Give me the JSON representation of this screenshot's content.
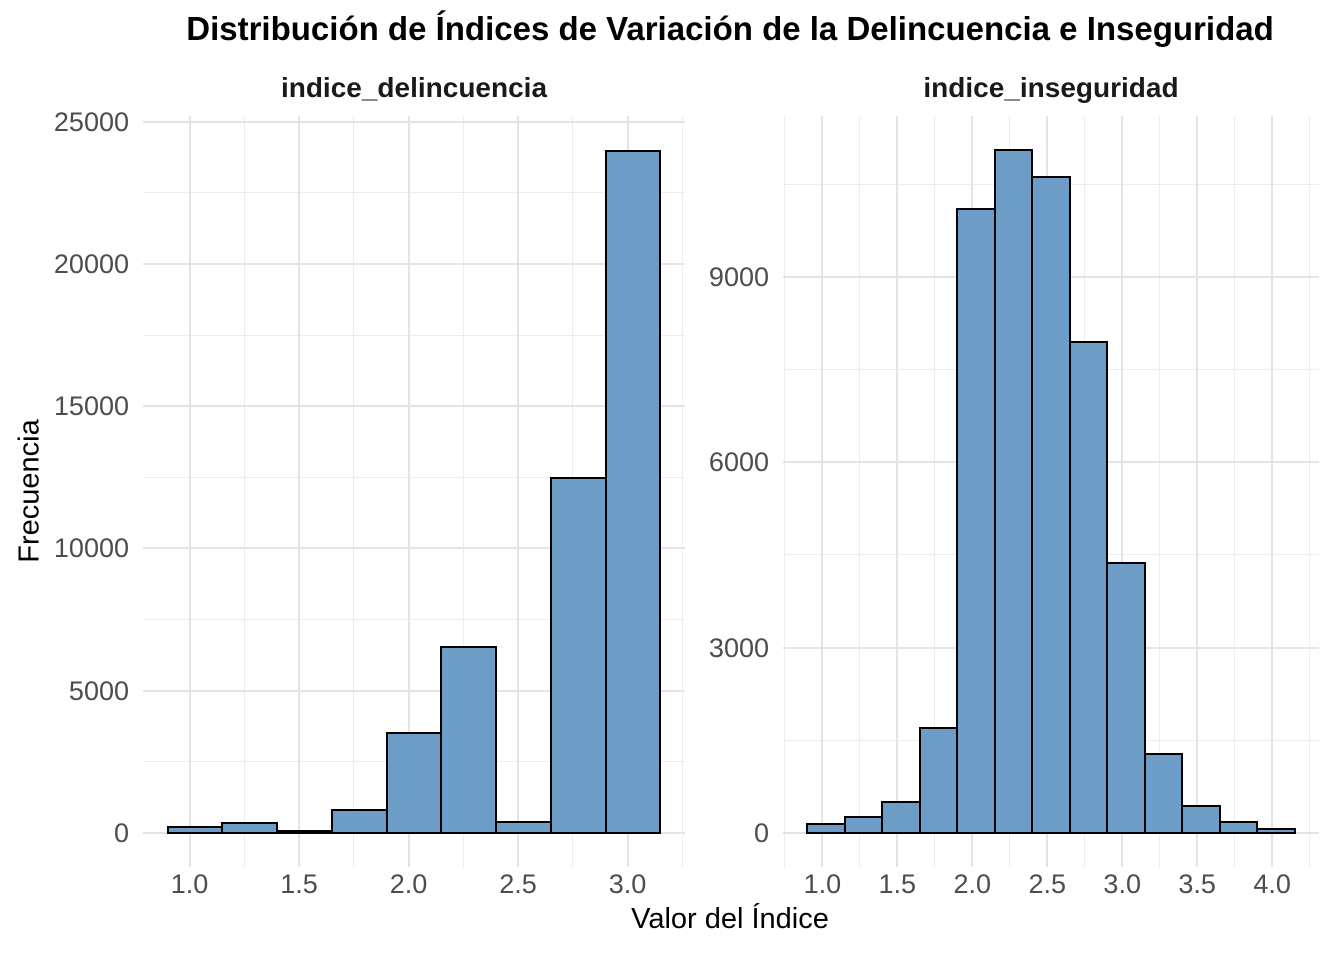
{
  "title": "Distribución de Índices de Variación de la Delincuencia e Inseguridad",
  "y_axis_title": "Frecuencia",
  "x_axis_title": "Valor del Índice",
  "colors": {
    "bar_fill": "#6D9CC6",
    "bar_stroke": "#000000",
    "grid_major": "#e4e4e4",
    "grid_minor": "#ededed",
    "tick_label": "#4d4d4d",
    "title_text": "#000000",
    "background": "#ffffff"
  },
  "chart_data": [
    {
      "type": "bar",
      "subtype": "histogram",
      "facet_label": "indice_delincuencia",
      "bin_start": 0.9,
      "bin_width": 0.25,
      "counts": [
        210,
        350,
        50,
        800,
        3500,
        6540,
        390,
        12480,
        23980
      ],
      "x_tick_values": [
        1.0,
        1.5,
        2.0,
        2.5,
        3.0
      ],
      "x_tick_labels": [
        "1.0",
        "1.5",
        "2.0",
        "2.5",
        "3.0"
      ],
      "x_minor_values": [
        1.25,
        1.75,
        2.25,
        2.75,
        3.25
      ],
      "y_tick_values": [
        0,
        5000,
        10000,
        15000,
        20000,
        25000
      ],
      "y_tick_labels": [
        "0",
        "5000",
        "10000",
        "15000",
        "20000",
        "25000"
      ],
      "y_minor_values": [
        2500,
        7500,
        12500,
        17500,
        22500
      ],
      "xlim": [
        0.7875,
        3.2625
      ],
      "ylim": [
        -1200,
        25200
      ],
      "grid": true,
      "legend": "none"
    },
    {
      "type": "bar",
      "subtype": "histogram",
      "facet_label": "indice_inseguridad",
      "bin_start": 0.9,
      "bin_width": 0.25,
      "counts": [
        140,
        250,
        500,
        1700,
        10100,
        11050,
        10610,
        7940,
        4370,
        1270,
        440,
        180,
        60
      ],
      "x_tick_values": [
        1.0,
        1.5,
        2.0,
        2.5,
        3.0,
        3.5,
        4.0
      ],
      "x_tick_labels": [
        "1.0",
        "1.5",
        "2.0",
        "2.5",
        "3.0",
        "3.5",
        "4.0"
      ],
      "x_minor_values": [
        0.75,
        1.25,
        1.75,
        2.25,
        2.75,
        3.25,
        3.75,
        4.25
      ],
      "y_tick_values": [
        0,
        3000,
        6000,
        9000
      ],
      "y_tick_labels": [
        "0",
        "3000",
        "6000",
        "9000"
      ],
      "y_minor_values": [
        1500,
        4500,
        7500,
        10500
      ],
      "xlim": [
        0.7375,
        4.3125
      ],
      "ylim": [
        -552,
        11602
      ],
      "grid": true,
      "legend": "none"
    }
  ]
}
